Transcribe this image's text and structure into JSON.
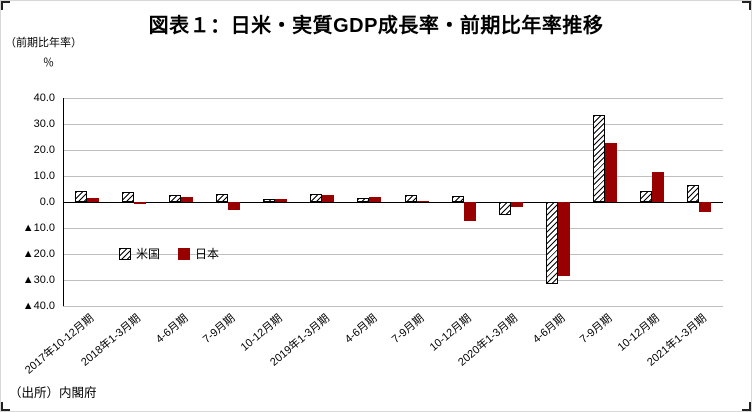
{
  "title": "図表１：日米・実質GDP成長率・前期比年率推移",
  "y_axis_unit": {
    "line1": "（前期比年率）",
    "line2": "％"
  },
  "source": "（出所）内閣府",
  "colors": {
    "japan_bar": "#990000",
    "us_bar_pattern": "black-diagonal-hatch-on-white",
    "grid": "#bfbfbf",
    "axis": "#000000"
  },
  "chart_data": {
    "type": "bar",
    "title": "図表１：日米・実質GDP成長率・前期比年率推移",
    "ylabel": "（前期比年率）％",
    "ylim": [
      -40,
      40
    ],
    "ytick_step": 10,
    "ytick_labels": [
      "40.0",
      "30.0",
      "20.0",
      "10.0",
      "0.0",
      "▲10.0",
      "▲20.0",
      "▲30.0",
      "▲40.0"
    ],
    "grid": true,
    "legend_position": "inside-upper-left-of-negative-area",
    "categories": [
      "2017年10-12月期",
      "2018年1-3月期",
      "4-6月期",
      "7-9月期",
      "10-12月期",
      "2019年1-3月期",
      "4-6月期",
      "7-9月期",
      "10-12月期",
      "2020年1-3月期",
      "4-6月期",
      "7-9月期",
      "10-12月期",
      "2021年1-3月期"
    ],
    "series": [
      {
        "name": "米国",
        "style": "hatched",
        "values": [
          4.1,
          3.8,
          2.8,
          2.9,
          1.3,
          2.9,
          1.5,
          2.6,
          2.4,
          -5.0,
          -31.4,
          33.4,
          4.3,
          6.4
        ]
      },
      {
        "name": "日本",
        "style": "solid",
        "color": "#990000",
        "values": [
          1.5,
          -0.9,
          2.0,
          -2.9,
          1.2,
          2.6,
          1.8,
          0.3,
          -7.3,
          -2.1,
          -28.6,
          22.8,
          11.6,
          -3.9
        ]
      }
    ]
  }
}
